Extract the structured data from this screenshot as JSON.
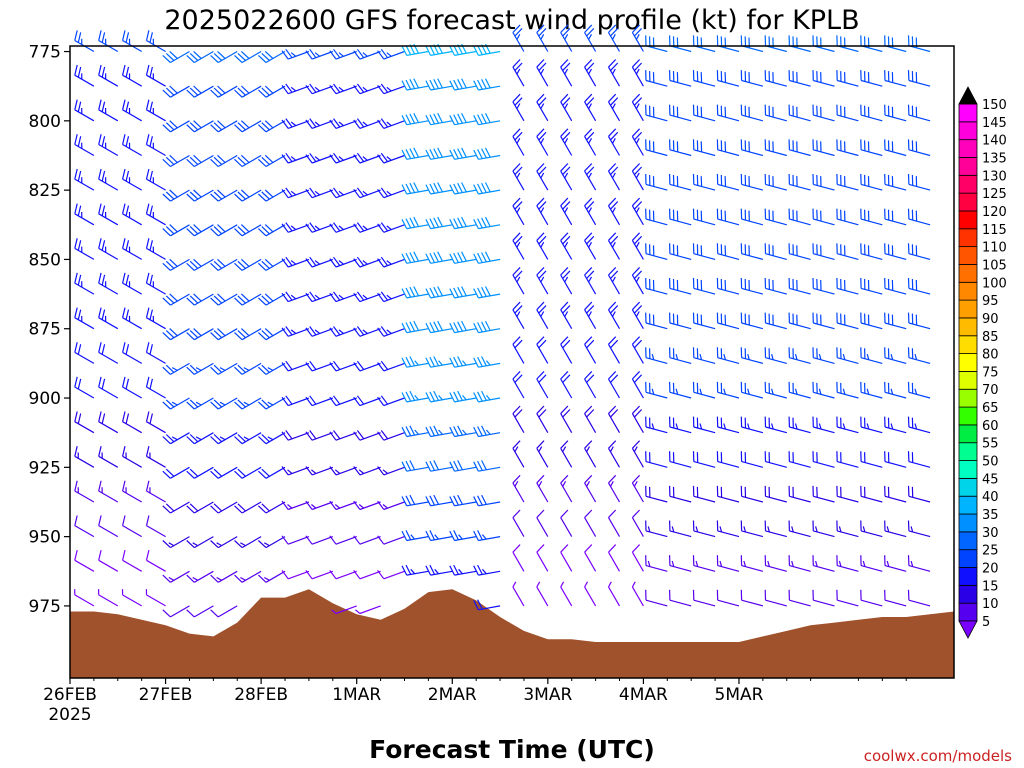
{
  "chart_data": {
    "type": "wind-barb time-height profile",
    "title": "2025022600 GFS forecast wind profile (kt) for KPLB",
    "xlabel": "Forecast Time (UTC)",
    "ylabel": "",
    "x_ticks": [
      "26FEB",
      "27FEB",
      "28FEB",
      "1MAR",
      "2MAR",
      "3MAR",
      "4MAR",
      "5MAR"
    ],
    "x_year": "2025",
    "x_range_hours": [
      0,
      222
    ],
    "x_step_hours": 6,
    "y_ticks": [
      775,
      800,
      825,
      850,
      875,
      900,
      925,
      950,
      975
    ],
    "y_range_hpa": [
      773,
      1001
    ],
    "y_levels": [
      775,
      800,
      825,
      850,
      875,
      900,
      925,
      950,
      975
    ],
    "units": "kt",
    "colorbar": {
      "values": [
        5,
        10,
        15,
        20,
        25,
        30,
        35,
        40,
        45,
        50,
        55,
        60,
        65,
        70,
        75,
        80,
        85,
        90,
        95,
        100,
        105,
        110,
        115,
        120,
        125,
        130,
        135,
        140,
        145,
        150
      ],
      "colors": [
        "#7a00ff",
        "#5500ee",
        "#2a00e6",
        "#1010ff",
        "#0044ff",
        "#0066ff",
        "#0090ff",
        "#00b4ff",
        "#00d4e8",
        "#00ffc0",
        "#00ff90",
        "#00ee44",
        "#33ff00",
        "#99ff00",
        "#ddff00",
        "#ffff00",
        "#ffdd00",
        "#ffbb00",
        "#ffa000",
        "#ff8800",
        "#ff7000",
        "#ff5500",
        "#ff3300",
        "#ff0000",
        "#ff0040",
        "#ff0066",
        "#ff0099",
        "#ff00bb",
        "#ff00dd",
        "#ff00ff"
      ]
    },
    "terrain_color": "#a0522d",
    "surface_pressure_hpa": [
      {
        "t": 0,
        "p": 977
      },
      {
        "t": 6,
        "p": 977
      },
      {
        "t": 12,
        "p": 978
      },
      {
        "t": 18,
        "p": 980
      },
      {
        "t": 24,
        "p": 982
      },
      {
        "t": 30,
        "p": 985
      },
      {
        "t": 36,
        "p": 986
      },
      {
        "t": 42,
        "p": 981
      },
      {
        "t": 48,
        "p": 972
      },
      {
        "t": 54,
        "p": 972
      },
      {
        "t": 60,
        "p": 969
      },
      {
        "t": 66,
        "p": 974
      },
      {
        "t": 72,
        "p": 978
      },
      {
        "t": 78,
        "p": 980
      },
      {
        "t": 84,
        "p": 976
      },
      {
        "t": 90,
        "p": 970
      },
      {
        "t": 96,
        "p": 969
      },
      {
        "t": 102,
        "p": 973
      },
      {
        "t": 108,
        "p": 979
      },
      {
        "t": 114,
        "p": 984
      },
      {
        "t": 120,
        "p": 987
      },
      {
        "t": 126,
        "p": 987
      },
      {
        "t": 132,
        "p": 988
      },
      {
        "t": 138,
        "p": 988
      },
      {
        "t": 144,
        "p": 988
      },
      {
        "t": 150,
        "p": 988
      },
      {
        "t": 156,
        "p": 988
      },
      {
        "t": 162,
        "p": 988
      },
      {
        "t": 168,
        "p": 988
      },
      {
        "t": 174,
        "p": 986
      },
      {
        "t": 180,
        "p": 984
      },
      {
        "t": 186,
        "p": 982
      },
      {
        "t": 192,
        "p": 981
      },
      {
        "t": 198,
        "p": 980
      },
      {
        "t": 204,
        "p": 979
      },
      {
        "t": 210,
        "p": 979
      },
      {
        "t": 216,
        "p": 978
      },
      {
        "t": 222,
        "p": 977
      }
    ],
    "wind_regimes": [
      {
        "t_start": 0,
        "t_end": 30,
        "dir_deg": 300,
        "speed_kt": 25
      },
      {
        "t_start": 30,
        "t_end": 60,
        "dir_deg": 240,
        "speed_kt": 30
      },
      {
        "t_start": 60,
        "t_end": 90,
        "dir_deg": 250,
        "speed_kt": 25
      },
      {
        "t_start": 90,
        "t_end": 111,
        "dir_deg": 260,
        "speed_kt": 40
      },
      {
        "t_start": 111,
        "t_end": 150,
        "dir_deg": 330,
        "speed_kt": 25
      },
      {
        "t_start": 150,
        "t_end": 222,
        "dir_deg": 285,
        "speed_kt": 30
      }
    ]
  },
  "credit": "coolwx.com/models"
}
